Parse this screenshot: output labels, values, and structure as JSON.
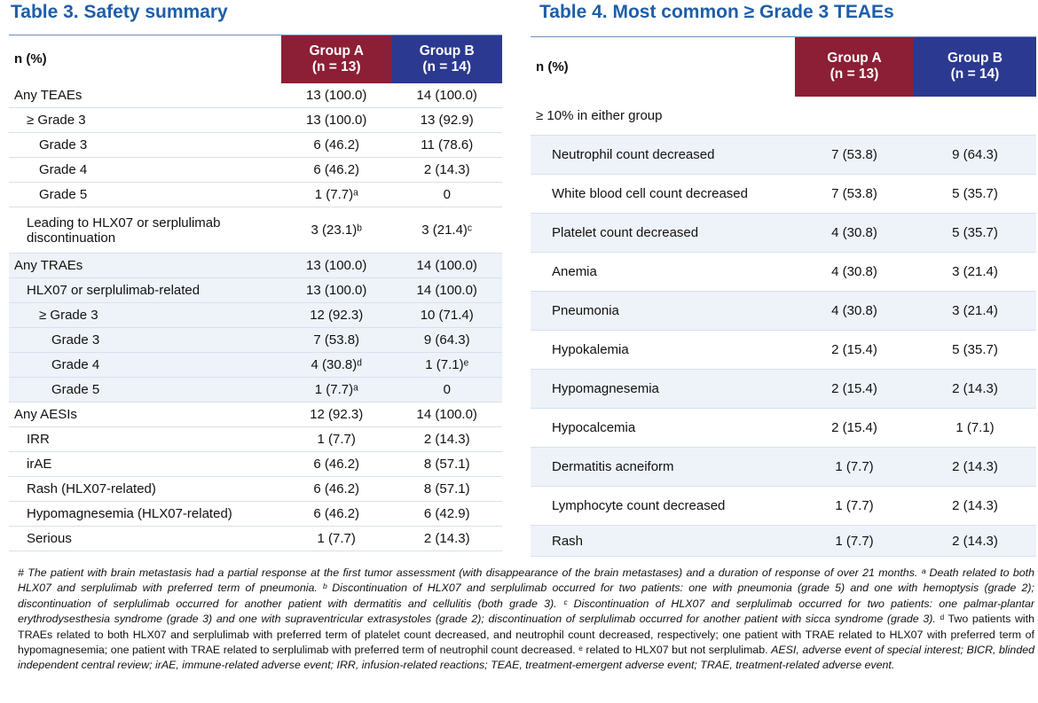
{
  "table3": {
    "title": "Table 3. Safety summary",
    "header": {
      "label": "n (%)",
      "groups": [
        [
          "Group A",
          "(n = 13)"
        ],
        [
          "Group B",
          "(n = 14)"
        ]
      ]
    },
    "rows": [
      [
        "Any TEAEs",
        "13 (100.0)",
        "14 (100.0)"
      ],
      [
        "≥ Grade 3",
        "13 (100.0)",
        "13 (92.9)"
      ],
      [
        "Grade 3",
        "6 (46.2)",
        "11 (78.6)"
      ],
      [
        "Grade 4",
        "6 (46.2)",
        "2 (14.3)"
      ],
      [
        "Grade 5",
        "1 (7.7)ᵃ",
        "0"
      ],
      [
        "Leading to HLX07 or serplulimab discontinuation",
        "3 (23.1)ᵇ",
        "3 (21.4)ᶜ"
      ],
      [
        "Any TRAEs",
        "13 (100.0)",
        "14 (100.0)"
      ],
      [
        "HLX07 or serplulimab-related",
        "13 (100.0)",
        "14 (100.0)"
      ],
      [
        "≥ Grade 3",
        "12 (92.3)",
        "10 (71.4)"
      ],
      [
        "Grade 3",
        "7 (53.8)",
        "9 (64.3)"
      ],
      [
        "Grade 4",
        "4 (30.8)ᵈ",
        "1 (7.1)ᵉ"
      ],
      [
        "Grade 5",
        "1 (7.7)ᵃ",
        "0"
      ],
      [
        "Any AESIs",
        "12 (92.3)",
        "14 (100.0)"
      ],
      [
        "IRR",
        "1 (7.7)",
        "2 (14.3)"
      ],
      [
        "irAE",
        "6 (46.2)",
        "8 (57.1)"
      ],
      [
        "Rash (HLX07-related)",
        "6 (46.2)",
        "8 (57.1)"
      ],
      [
        "Hypomagnesemia (HLX07-related)",
        "6 (46.2)",
        "6 (42.9)"
      ],
      [
        "Serious",
        "1 (7.7)",
        "2 (14.3)"
      ]
    ]
  },
  "table4": {
    "title": "Table 4. Most common ≥ Grade 3 TEAEs",
    "header": {
      "label": "n (%)",
      "groups": [
        [
          "Group A",
          "(n = 13)"
        ],
        [
          "Group B",
          "(n = 14)"
        ]
      ]
    },
    "section": "≥ 10% in either group",
    "rows": [
      [
        "Neutrophil count decreased",
        "7 (53.8)",
        "9 (64.3)"
      ],
      [
        "White blood cell count decreased",
        "7 (53.8)",
        "5 (35.7)"
      ],
      [
        "Platelet count decreased",
        "4 (30.8)",
        "5 (35.7)"
      ],
      [
        "Anemia",
        "4 (30.8)",
        "3 (21.4)"
      ],
      [
        "Pneumonia",
        "4 (30.8)",
        "3 (21.4)"
      ],
      [
        "Hypokalemia",
        "2 (15.4)",
        "5 (35.7)"
      ],
      [
        "Hypomagnesemia",
        "2 (15.4)",
        "2 (14.3)"
      ],
      [
        "Hypocalcemia",
        "2 (15.4)",
        "1 (7.1)"
      ],
      [
        "Dermatitis acneiform",
        "1 (7.7)",
        "2 (14.3)"
      ],
      [
        "Lymphocyte count decreased",
        "1 (7.7)",
        "2 (14.3)"
      ],
      [
        "Rash",
        "1 (7.7)",
        "2 (14.3)"
      ]
    ]
  },
  "footnote": [
    "# The patient with brain metastasis had a partial response at the first tumor assessment (with disappearance of the brain metastases) and a duration of response of over 21 months. ᵃ Death related to both HLX07 and serplulimab with preferred term of pneumonia. ᵇ Discontinuation of HLX07 and serplulimab occurred for two patients: one with pneumonia (grade 5) and one with hemoptysis (grade 2); discontinuation of serplulimab occurred for another patient with dermatitis and cellulitis (both grade 3). ᶜ Discontinuation of HLX07 and serplulimab occurred for two patients: one palmar-plantar erythrodysesthesia syndrome (grade 3) and one with supraventricular extrasystoles (grade 2); discontinuation of serplulimab occurred for another patient with sicca syndrome (grade 3).",
    "ᵈ Two patients with TRAEs related to both HLX07 and serplulimab with preferred term of platelet count decreased, and neutrophil count decreased, respectively; one patient with TRAE related to HLX07 with preferred term of hypomagnesemia; one patient with TRAE related to serplulimab with preferred term of neutrophil count decreased. ᵉ related to HLX07 but not serplulimab.",
    "AESI, adverse event of special interest; BICR, blinded independent central review; irAE, immune-related adverse event; IRR, infusion-related reactions; TEAE, treatment-emergent adverse event; TRAE, treatment-related adverse event."
  ]
}
